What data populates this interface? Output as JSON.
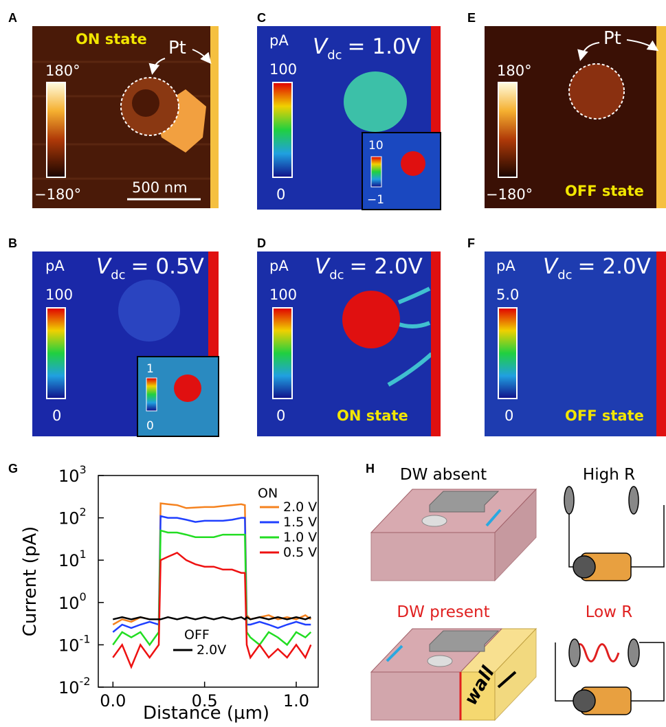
{
  "panels": {
    "A": {
      "letter": "A",
      "state": "ON state",
      "pt": "Pt",
      "cbar_max": "180°",
      "cbar_min": "−180°",
      "scale_bar": "500 nm"
    },
    "B": {
      "letter": "B",
      "unit": "pA",
      "v": "V",
      "sub": "dc",
      "vdc": "= 0.5V",
      "cbar_max": "100",
      "cbar_min": "0",
      "inset_max": "1",
      "inset_min": "0"
    },
    "C": {
      "letter": "C",
      "unit": "pA",
      "v": "V",
      "sub": "dc",
      "vdc": "= 1.0V",
      "cbar_max": "100",
      "cbar_min": "0",
      "inset_max": "10",
      "inset_min": "−1"
    },
    "D": {
      "letter": "D",
      "unit": "pA",
      "v": "V",
      "sub": "dc",
      "vdc": "= 2.0V",
      "cbar_max": "100",
      "cbar_min": "0",
      "state": "ON state"
    },
    "E": {
      "letter": "E",
      "pt": "Pt",
      "cbar_max": "180°",
      "cbar_min": "−180°",
      "state": "OFF state"
    },
    "F": {
      "letter": "F",
      "unit": "pA",
      "v": "V",
      "sub": "dc",
      "vdc": "= 2.0V",
      "cbar_max": "5.0",
      "cbar_min": "0",
      "state": "OFF state"
    },
    "G": {
      "letter": "G"
    },
    "H": {
      "letter": "H",
      "absent": "DW absent",
      "high": "High R",
      "present": "DW present",
      "low": "Low R",
      "wall": "wall"
    }
  },
  "chart_data": {
    "type": "line",
    "x_label": "Distance (µm)",
    "y_label": "Current (pA)",
    "log_y": true,
    "legend_titles": [
      "ON",
      "OFF"
    ],
    "x": [
      0.0,
      0.05,
      0.1,
      0.15,
      0.2,
      0.25,
      0.26,
      0.3,
      0.35,
      0.4,
      0.45,
      0.5,
      0.55,
      0.6,
      0.65,
      0.7,
      0.72,
      0.73,
      0.75,
      0.8,
      0.85,
      0.9,
      0.95,
      1.0,
      1.05,
      1.08
    ],
    "series": [
      {
        "name": "2.0 V",
        "color": "#f5821f",
        "values": [
          0.3,
          0.4,
          0.35,
          0.45,
          0.4,
          0.4,
          220,
          210,
          200,
          170,
          175,
          180,
          180,
          190,
          200,
          210,
          200,
          0.5,
          0.4,
          0.45,
          0.5,
          0.4,
          0.45,
          0.4,
          0.5,
          0.4
        ]
      },
      {
        "name": "1.5 V",
        "color": "#1f3fff",
        "values": [
          0.2,
          0.3,
          0.25,
          0.3,
          0.35,
          0.3,
          110,
          100,
          100,
          90,
          80,
          85,
          85,
          85,
          90,
          100,
          100,
          0.3,
          0.3,
          0.35,
          0.3,
          0.25,
          0.3,
          0.35,
          0.3,
          0.3
        ]
      },
      {
        "name": "1.0 V",
        "color": "#22dd22",
        "values": [
          0.1,
          0.2,
          0.15,
          0.2,
          0.1,
          0.2,
          50,
          45,
          45,
          40,
          35,
          35,
          35,
          40,
          40,
          40,
          40,
          0.2,
          0.15,
          0.1,
          0.2,
          0.15,
          0.1,
          0.2,
          0.15,
          0.2
        ]
      },
      {
        "name": "0.5 V",
        "color": "#ee1111",
        "values": [
          0.05,
          0.1,
          0.03,
          0.1,
          0.05,
          0.1,
          10,
          12,
          15,
          10,
          8,
          7,
          7,
          6,
          6,
          5,
          5,
          0.1,
          0.05,
          0.1,
          0.05,
          0.08,
          0.05,
          0.1,
          0.05,
          0.1
        ]
      },
      {
        "name": "2.0V",
        "color": "#000000",
        "values": [
          0.4,
          0.45,
          0.4,
          0.45,
          0.4,
          0.4,
          0.4,
          0.45,
          0.4,
          0.45,
          0.4,
          0.45,
          0.4,
          0.45,
          0.4,
          0.45,
          0.4,
          0.45,
          0.4,
          0.45,
          0.4,
          0.45,
          0.4,
          0.45,
          0.4,
          0.45
        ]
      }
    ],
    "xlim": [
      -0.08,
      1.12
    ],
    "ylim": [
      0.01,
      1000
    ],
    "xticks": [
      {
        "value": 0,
        "label": "0.0"
      },
      0.5,
      {
        "value": 1,
        "label": "1.0"
      }
    ],
    "yticks": [
      {
        "value": 0.01,
        "label": "10",
        "exponent": "-2"
      },
      {
        "value": 0.1,
        "label": "10",
        "exponent": "-1"
      },
      {
        "value": 1,
        "label": "10",
        "exponent": "0"
      },
      {
        "value": 10,
        "label": "10",
        "exponent": "1"
      },
      {
        "value": 100,
        "label": "10",
        "exponent": "2"
      },
      {
        "value": 1000,
        "label": "10",
        "exponent": "3"
      }
    ]
  }
}
